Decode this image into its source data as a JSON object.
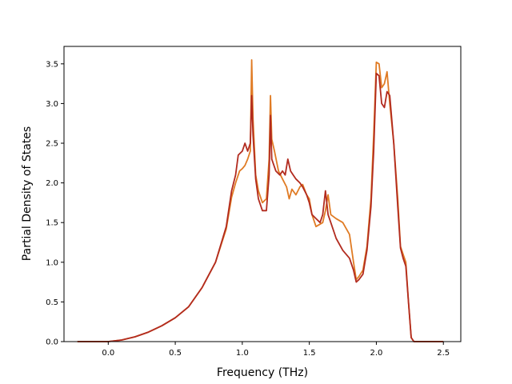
{
  "chart_data": {
    "type": "line",
    "title": "",
    "xlabel": "Frequency (THz)",
    "ylabel": "Partial Density of States",
    "xlim": [
      -0.33,
      2.63
    ],
    "ylim": [
      0.0,
      3.72
    ],
    "x_ticks": [
      0.0,
      0.5,
      1.0,
      1.5,
      2.0,
      2.5
    ],
    "x_tick_labels": [
      "0.0",
      "0.5",
      "1.0",
      "1.5",
      "2.0",
      "2.5"
    ],
    "y_ticks": [
      0.0,
      0.5,
      1.0,
      1.5,
      2.0,
      2.5,
      3.0,
      3.5
    ],
    "y_tick_labels": [
      "0.0",
      "0.5",
      "1.0",
      "1.5",
      "2.0",
      "2.5",
      "3.0",
      "3.5"
    ],
    "grid": false,
    "legend": "none",
    "series": [
      {
        "color": "#e07b24",
        "x": [
          -0.23,
          0.0,
          0.1,
          0.2,
          0.3,
          0.4,
          0.5,
          0.6,
          0.7,
          0.8,
          0.88,
          0.92,
          0.95,
          0.98,
          1.0,
          1.02,
          1.04,
          1.06,
          1.07,
          1.08,
          1.1,
          1.12,
          1.15,
          1.18,
          1.2,
          1.21,
          1.22,
          1.24,
          1.27,
          1.3,
          1.33,
          1.35,
          1.37,
          1.4,
          1.43,
          1.45,
          1.48,
          1.5,
          1.52,
          1.55,
          1.58,
          1.6,
          1.62,
          1.64,
          1.66,
          1.7,
          1.75,
          1.8,
          1.83,
          1.85,
          1.87,
          1.9,
          1.93,
          1.96,
          1.98,
          2.0,
          2.02,
          2.04,
          2.06,
          2.08,
          2.1,
          2.13,
          2.16,
          2.18,
          2.2,
          2.22,
          2.24,
          2.26,
          2.28,
          2.3,
          2.5
        ],
        "y": [
          0.0,
          0.0,
          0.02,
          0.06,
          0.12,
          0.2,
          0.3,
          0.44,
          0.68,
          1.0,
          1.42,
          1.82,
          2.0,
          2.15,
          2.18,
          2.22,
          2.3,
          2.4,
          3.55,
          2.8,
          2.1,
          1.9,
          1.75,
          1.8,
          2.3,
          3.1,
          2.55,
          2.4,
          2.15,
          2.05,
          1.95,
          1.8,
          1.92,
          1.85,
          1.95,
          1.98,
          1.85,
          1.8,
          1.6,
          1.45,
          1.48,
          1.5,
          1.65,
          1.85,
          1.6,
          1.55,
          1.5,
          1.35,
          1.0,
          0.78,
          0.82,
          0.9,
          1.2,
          1.8,
          2.6,
          3.52,
          3.5,
          3.2,
          3.25,
          3.4,
          3.0,
          2.5,
          1.8,
          1.2,
          1.1,
          1.0,
          0.5,
          0.05,
          0.0,
          0.0,
          0.0
        ]
      },
      {
        "color": "#b22b1f",
        "x": [
          -0.23,
          0.0,
          0.1,
          0.2,
          0.3,
          0.4,
          0.5,
          0.6,
          0.7,
          0.8,
          0.88,
          0.92,
          0.95,
          0.97,
          1.0,
          1.02,
          1.04,
          1.06,
          1.07,
          1.08,
          1.1,
          1.12,
          1.15,
          1.18,
          1.2,
          1.21,
          1.22,
          1.25,
          1.28,
          1.3,
          1.32,
          1.34,
          1.36,
          1.38,
          1.4,
          1.43,
          1.45,
          1.48,
          1.5,
          1.52,
          1.55,
          1.58,
          1.6,
          1.62,
          1.64,
          1.66,
          1.7,
          1.75,
          1.8,
          1.83,
          1.85,
          1.87,
          1.9,
          1.93,
          1.96,
          1.98,
          2.0,
          2.02,
          2.04,
          2.06,
          2.08,
          2.1,
          2.13,
          2.16,
          2.18,
          2.2,
          2.22,
          2.24,
          2.26,
          2.28,
          2.3,
          2.5
        ],
        "y": [
          0.0,
          0.0,
          0.02,
          0.06,
          0.12,
          0.2,
          0.3,
          0.44,
          0.68,
          1.0,
          1.45,
          1.9,
          2.1,
          2.35,
          2.4,
          2.5,
          2.4,
          2.5,
          3.1,
          2.6,
          2.05,
          1.8,
          1.65,
          1.65,
          2.1,
          2.85,
          2.3,
          2.15,
          2.1,
          2.15,
          2.1,
          2.3,
          2.15,
          2.1,
          2.05,
          2.0,
          1.95,
          1.85,
          1.75,
          1.6,
          1.55,
          1.5,
          1.6,
          1.9,
          1.6,
          1.5,
          1.3,
          1.15,
          1.05,
          0.9,
          0.75,
          0.78,
          0.85,
          1.15,
          1.7,
          2.4,
          3.38,
          3.35,
          3.0,
          2.95,
          3.15,
          3.1,
          2.5,
          1.7,
          1.18,
          1.05,
          0.95,
          0.5,
          0.05,
          0.0,
          0.0,
          0.0
        ]
      }
    ]
  }
}
